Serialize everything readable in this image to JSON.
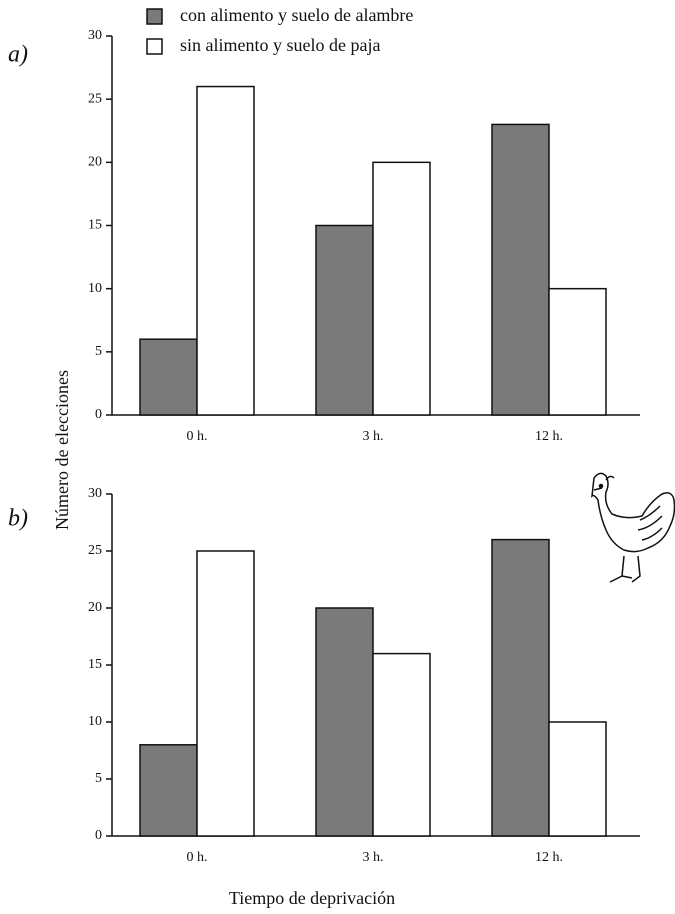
{
  "chart_data": [
    {
      "type": "bar",
      "panel_label": "a)",
      "ylabel": "Número de elecciones",
      "categories": [
        "0 h.",
        "3 h.",
        "12 h."
      ],
      "series": [
        {
          "name": "con alimento y suelo de alambre",
          "color": "#7a7a7a",
          "values": [
            6,
            15,
            23
          ]
        },
        {
          "name": "sin alimento y suelo de paja",
          "color": "#ffffff",
          "values": [
            26,
            20,
            10
          ]
        }
      ],
      "ylim": [
        0,
        30
      ],
      "yticks": [
        0,
        5,
        10,
        15,
        20,
        25,
        30
      ],
      "grid": false
    },
    {
      "type": "bar",
      "panel_label": "b)",
      "xlabel": "Tiempo de deprivación",
      "categories": [
        "0 h.",
        "3 h.",
        "12 h."
      ],
      "series": [
        {
          "color": "#7a7a7a",
          "values": [
            8,
            20,
            26
          ]
        },
        {
          "color": "#ffffff",
          "values": [
            25,
            16,
            10
          ]
        }
      ],
      "ylim": [
        0,
        30
      ],
      "yticks": [
        0,
        5,
        10,
        15,
        20,
        25,
        30
      ],
      "grid": false
    }
  ]
}
